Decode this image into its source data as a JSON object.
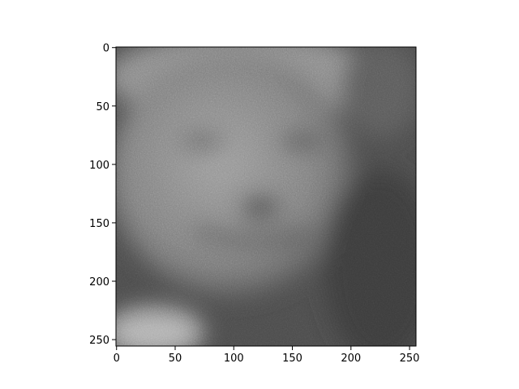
{
  "chart_data": {
    "type": "image",
    "xlim": [
      -0.5,
      255.5
    ],
    "ylim": [
      255.5,
      -0.5
    ],
    "xticks": [
      0,
      50,
      100,
      150,
      200,
      250
    ],
    "yticks": [
      0,
      50,
      100,
      150,
      200,
      250
    ],
    "colormap": "gray"
  }
}
